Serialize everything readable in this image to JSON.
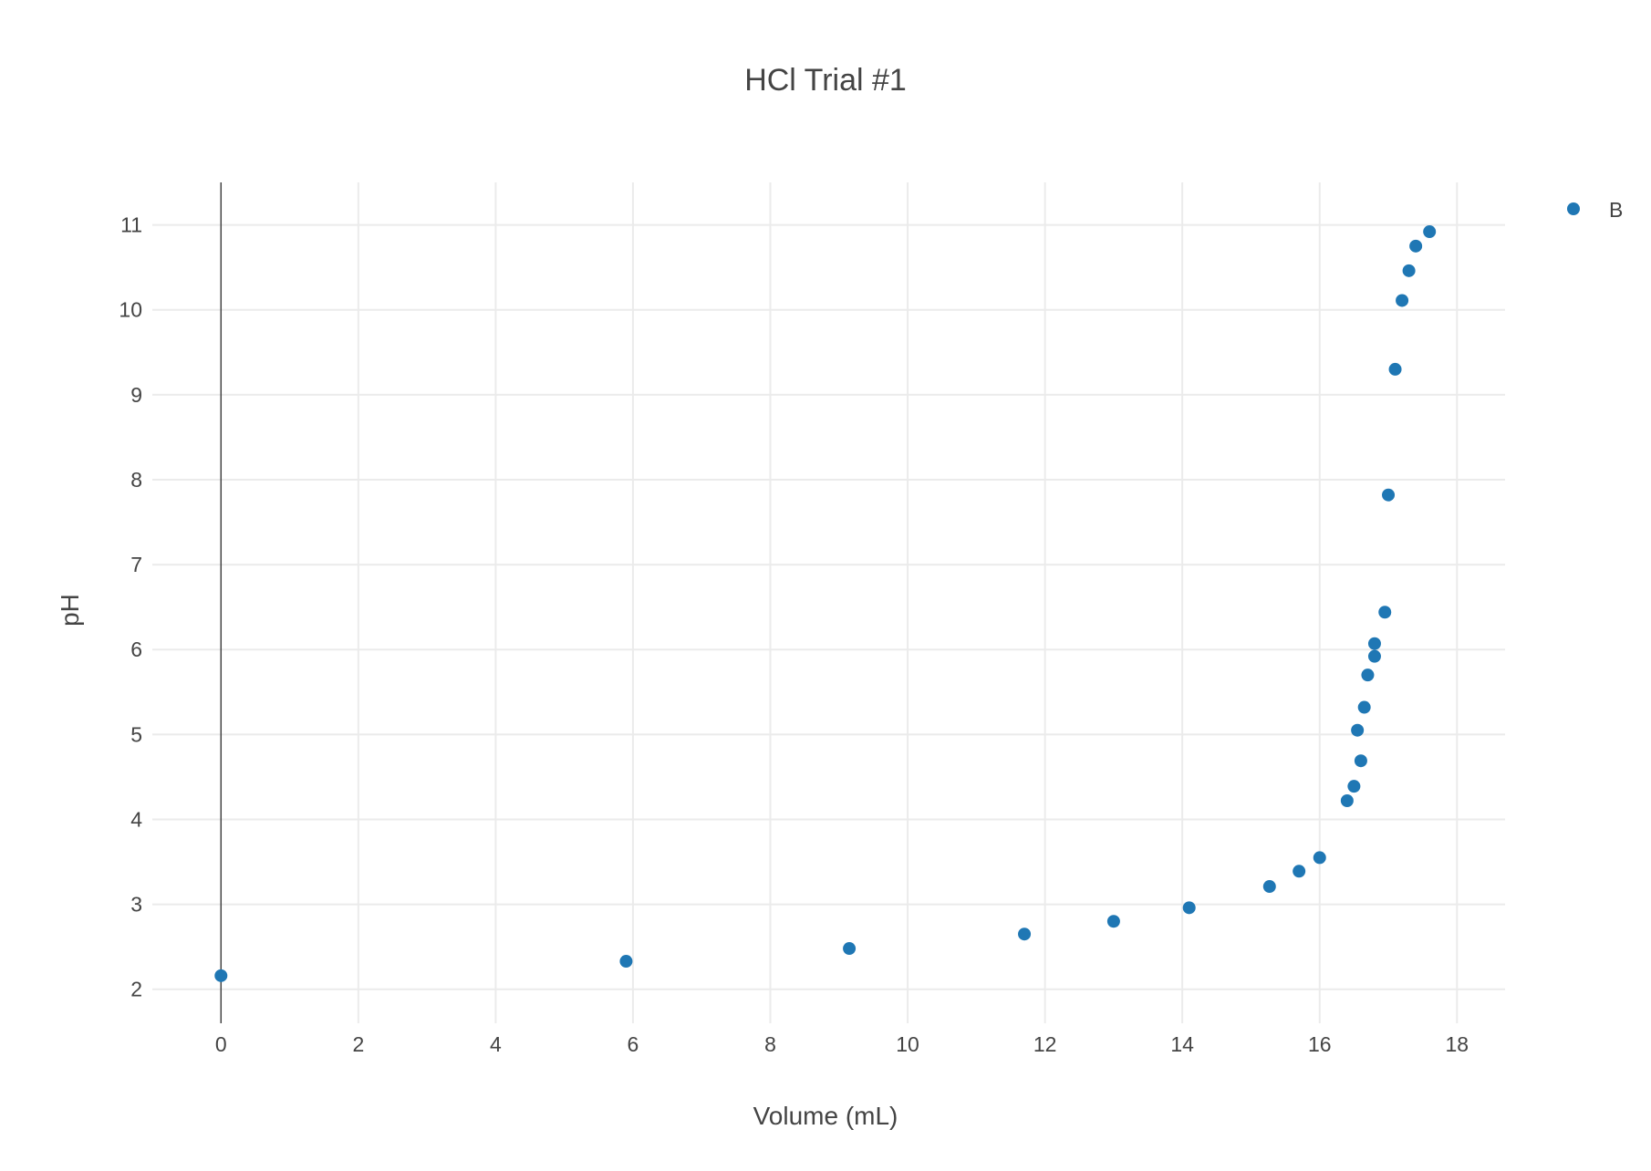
{
  "chart_data": {
    "type": "scatter",
    "title": "HCl Trial #1",
    "xlabel": "Volume (mL)",
    "ylabel": "pH",
    "xlim": [
      -1,
      18.7
    ],
    "ylim": [
      1.6,
      11.5
    ],
    "xticks": [
      0,
      2,
      4,
      6,
      8,
      10,
      12,
      14,
      16,
      18
    ],
    "yticks": [
      2,
      3,
      4,
      5,
      6,
      7,
      8,
      9,
      10,
      11
    ],
    "grid": true,
    "legend": "top-right",
    "series": [
      {
        "name": "B",
        "color": "#1f77b4",
        "x": [
          0,
          5.9,
          9.15,
          11.7,
          13.0,
          14.1,
          15.27,
          15.7,
          16.0,
          16.4,
          16.5,
          16.6,
          16.55,
          16.65,
          16.7,
          16.8,
          16.8,
          16.95,
          17.0,
          17.1,
          17.2,
          17.3,
          17.4,
          17.6
        ],
        "y": [
          2.16,
          2.33,
          2.48,
          2.65,
          2.8,
          2.96,
          3.21,
          3.39,
          3.55,
          4.22,
          4.39,
          4.69,
          5.05,
          5.32,
          5.7,
          5.92,
          6.07,
          6.44,
          7.82,
          9.3,
          10.11,
          10.46,
          10.75,
          10.92
        ]
      }
    ]
  }
}
